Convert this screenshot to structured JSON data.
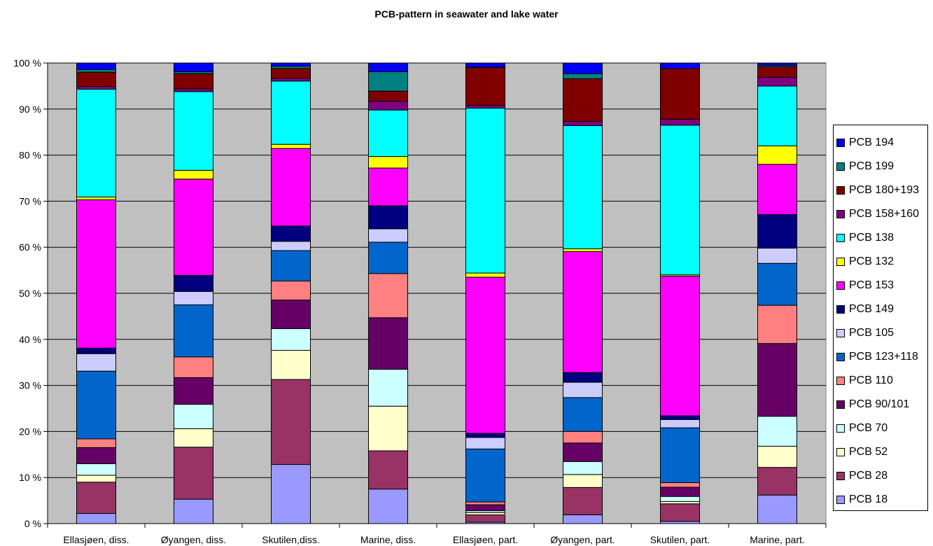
{
  "chart_data": {
    "type": "bar",
    "stacked": true,
    "normalized": true,
    "title": "PCB-pattern in seawater and lake water",
    "xlabel": "",
    "ylabel": "",
    "ylim": [
      0,
      100
    ],
    "y_ticks": [
      "0 %",
      "10 %",
      "20 %",
      "30 %",
      "40 %",
      "50 %",
      "60 %",
      "70 %",
      "80 %",
      "90 %",
      "100 %"
    ],
    "plot_background": "#c0c0c0",
    "grid": true,
    "legend_position": "right",
    "categories": [
      "Ellasjøen, diss.",
      "Øyangen, diss.",
      "Skutilen,diss.",
      "Marine, diss.",
      "Ellasjøen, part.",
      "Øyangen, part.",
      "Skutilen, part.",
      "Marine, part."
    ],
    "series": [
      {
        "name": "PCB 18",
        "color": "#9999ff",
        "values": [
          2.2,
          5.3,
          12.8,
          7.5,
          0.3,
          1.9,
          0.5,
          6.2
        ]
      },
      {
        "name": "PCB 28",
        "color": "#993366",
        "values": [
          6.8,
          11.3,
          18.4,
          8.3,
          1.6,
          5.9,
          3.8,
          6.0
        ]
      },
      {
        "name": "PCB 52",
        "color": "#ffffcc",
        "values": [
          1.5,
          4.0,
          6.3,
          9.7,
          0.5,
          2.8,
          0.5,
          4.6
        ]
      },
      {
        "name": "PCB 70",
        "color": "#ccffff",
        "values": [
          2.5,
          5.3,
          4.7,
          8.0,
          0.4,
          2.8,
          1.1,
          6.5
        ]
      },
      {
        "name": "PCB 90/101",
        "color": "#660066",
        "values": [
          3.5,
          5.8,
          6.2,
          11.2,
          1.3,
          4.0,
          2.0,
          15.8
        ]
      },
      {
        "name": "PCB 110",
        "color": "#ff8080",
        "values": [
          1.9,
          4.5,
          4.1,
          9.6,
          0.6,
          2.5,
          1.0,
          8.3
        ]
      },
      {
        "name": "PCB 123+118",
        "color": "#0066cc",
        "values": [
          14.7,
          11.3,
          6.6,
          6.8,
          11.5,
          7.3,
          11.9,
          9.1
        ]
      },
      {
        "name": "PCB 105",
        "color": "#ccccff",
        "values": [
          3.8,
          2.9,
          2.0,
          2.9,
          2.5,
          3.3,
          1.8,
          3.3
        ]
      },
      {
        "name": "PCB 149",
        "color": "#000080",
        "values": [
          1.2,
          3.5,
          3.3,
          5.0,
          0.9,
          2.1,
          0.8,
          7.3
        ]
      },
      {
        "name": "PCB 153",
        "color": "#ff00ff",
        "values": [
          32.2,
          20.9,
          16.8,
          8.2,
          33.9,
          26.1,
          30.3,
          10.9
        ]
      },
      {
        "name": "PCB 132",
        "color": "#ffff00",
        "values": [
          0.6,
          1.9,
          0.9,
          2.5,
          0.9,
          0.6,
          0.3,
          4.0
        ]
      },
      {
        "name": "PCB 138",
        "color": "#00ffff",
        "values": [
          23.4,
          17.1,
          13.7,
          10.1,
          35.8,
          26.6,
          32.5,
          13.0
        ]
      },
      {
        "name": "PCB 158+160",
        "color": "#800080",
        "values": [
          0.6,
          0.6,
          0.6,
          1.9,
          0.6,
          0.9,
          1.3,
          1.9
        ]
      },
      {
        "name": "PCB 180+193",
        "color": "#800000",
        "values": [
          3.1,
          3.3,
          2.1,
          2.2,
          8.2,
          9.2,
          11.0,
          2.3
        ]
      },
      {
        "name": "PCB 199",
        "color": "#008080",
        "values": [
          0.6,
          0.4,
          0.5,
          4.2,
          0.1,
          1.1,
          0.0,
          0.3
        ]
      },
      {
        "name": "PCB 194",
        "color": "#0000ff",
        "values": [
          1.4,
          1.9,
          0.7,
          1.9,
          0.9,
          2.3,
          1.2,
          0.5
        ]
      }
    ]
  }
}
